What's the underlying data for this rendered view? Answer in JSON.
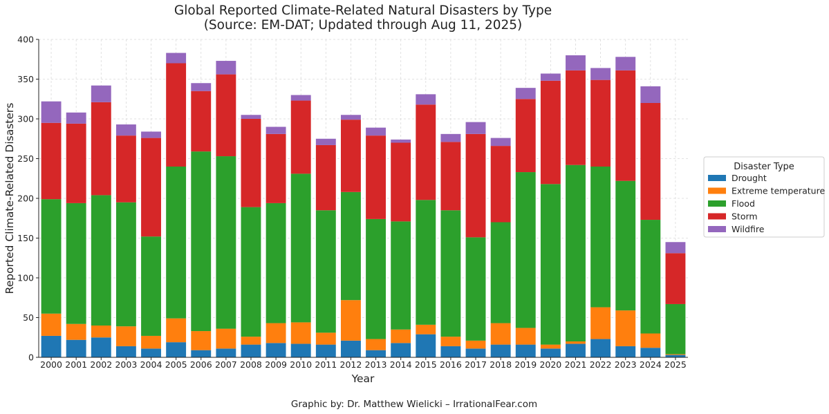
{
  "chart_data": {
    "type": "bar",
    "stacked": true,
    "title": "Global Reported Climate-Related Natural Disasters by Type",
    "subtitle": "(Source: EM-DAT; Updated through Aug 11, 2025)",
    "xlabel": "Year",
    "ylabel": "Reported Climate-Related Disasters",
    "ylim": [
      0,
      400
    ],
    "yticks": [
      0,
      50,
      100,
      150,
      200,
      250,
      300,
      350,
      400
    ],
    "grid": true,
    "legend_title": "Disaster Type",
    "legend_position": "center-right",
    "categories": [
      "2000",
      "2001",
      "2002",
      "2003",
      "2004",
      "2005",
      "2006",
      "2007",
      "2008",
      "2009",
      "2010",
      "2011",
      "2012",
      "2013",
      "2014",
      "2015",
      "2016",
      "2017",
      "2018",
      "2019",
      "2020",
      "2021",
      "2022",
      "2023",
      "2024",
      "2025"
    ],
    "series": [
      {
        "name": "Drought",
        "color": "#1f77b4",
        "values": [
          27,
          22,
          25,
          14,
          11,
          19,
          9,
          11,
          16,
          18,
          17,
          16,
          21,
          9,
          18,
          29,
          14,
          11,
          16,
          16,
          11,
          17,
          23,
          14,
          12,
          3
        ]
      },
      {
        "name": "Extreme temperature",
        "color": "#ff7f0e",
        "values": [
          28,
          20,
          15,
          25,
          16,
          30,
          24,
          25,
          10,
          25,
          27,
          15,
          51,
          14,
          17,
          12,
          12,
          10,
          27,
          21,
          5,
          3,
          40,
          45,
          18,
          1
        ]
      },
      {
        "name": "Flood",
        "color": "#2ca02c",
        "values": [
          144,
          152,
          164,
          156,
          125,
          191,
          226,
          217,
          163,
          151,
          187,
          154,
          136,
          151,
          136,
          157,
          159,
          130,
          127,
          196,
          202,
          222,
          177,
          163,
          143,
          63
        ]
      },
      {
        "name": "Storm",
        "color": "#d62728",
        "values": [
          96,
          100,
          117,
          84,
          124,
          130,
          76,
          103,
          111,
          87,
          92,
          82,
          91,
          105,
          99,
          120,
          86,
          130,
          96,
          92,
          130,
          119,
          109,
          139,
          147,
          64
        ]
      },
      {
        "name": "Wildfire",
        "color": "#9467bd",
        "values": [
          27,
          14,
          21,
          14,
          8,
          13,
          10,
          17,
          5,
          9,
          7,
          8,
          6,
          10,
          4,
          13,
          10,
          15,
          10,
          14,
          9,
          19,
          15,
          17,
          21,
          14
        ]
      }
    ],
    "credit": "Graphic by: Dr. Matthew Wielicki – IrrationalFear.com"
  }
}
